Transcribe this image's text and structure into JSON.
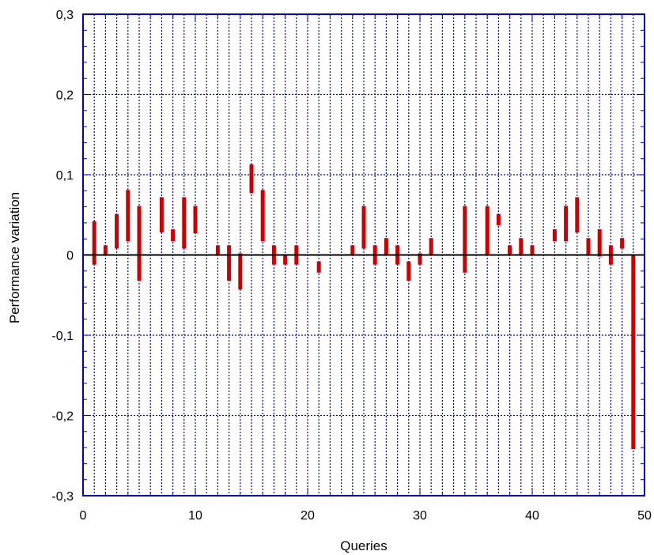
{
  "chart_data": {
    "type": "range_bar",
    "title": "",
    "xlabel": "Queries",
    "ylabel": "Performance variation",
    "xlim": [
      0,
      50
    ],
    "ylim": [
      -0.3,
      0.3
    ],
    "x_ticks": [
      "0",
      "10",
      "20",
      "30",
      "40",
      "50"
    ],
    "y_ticks": [
      "-0,3",
      "-0,2",
      "-0,1",
      "0",
      "0,1",
      "0,2",
      "0,3"
    ],
    "grid": true,
    "legend": "none",
    "colors": {
      "bar": "#cc0000",
      "grid": "#0000cc",
      "frame": "#0000cc",
      "zero_line": "#000000"
    },
    "series": [
      {
        "ranges": [
          {
            "x": 1,
            "low": -0.012,
            "high": 0.042
          },
          {
            "x": 2,
            "low": 0.0,
            "high": 0.012
          },
          {
            "x": 3,
            "low": 0.008,
            "high": 0.051
          },
          {
            "x": 4,
            "low": 0.017,
            "high": 0.081
          },
          {
            "x": 5,
            "low": -0.032,
            "high": 0.061
          },
          {
            "x": 7,
            "low": 0.028,
            "high": 0.072
          },
          {
            "x": 8,
            "low": 0.017,
            "high": 0.032
          },
          {
            "x": 9,
            "low": 0.008,
            "high": 0.072
          },
          {
            "x": 10,
            "low": 0.027,
            "high": 0.061
          },
          {
            "x": 12,
            "low": 0.0,
            "high": 0.012
          },
          {
            "x": 13,
            "low": -0.032,
            "high": 0.012
          },
          {
            "x": 14,
            "low": -0.043,
            "high": 0.002
          },
          {
            "x": 15,
            "low": 0.077,
            "high": 0.113
          },
          {
            "x": 16,
            "low": 0.017,
            "high": 0.081
          },
          {
            "x": 17,
            "low": -0.012,
            "high": 0.012
          },
          {
            "x": 18,
            "low": -0.012,
            "high": 0.0
          },
          {
            "x": 19,
            "low": -0.012,
            "high": 0.012
          },
          {
            "x": 21,
            "low": -0.022,
            "high": -0.008
          },
          {
            "x": 24,
            "low": 0.0,
            "high": 0.012
          },
          {
            "x": 25,
            "low": 0.008,
            "high": 0.061
          },
          {
            "x": 26,
            "low": -0.012,
            "high": 0.012
          },
          {
            "x": 27,
            "low": 0.0,
            "high": 0.021
          },
          {
            "x": 28,
            "low": -0.012,
            "high": 0.012
          },
          {
            "x": 29,
            "low": -0.032,
            "high": -0.008
          },
          {
            "x": 30,
            "low": -0.012,
            "high": 0.002
          },
          {
            "x": 31,
            "low": 0.0,
            "high": 0.021
          },
          {
            "x": 34,
            "low": -0.022,
            "high": 0.061
          },
          {
            "x": 36,
            "low": 0.0,
            "high": 0.061
          },
          {
            "x": 37,
            "low": 0.037,
            "high": 0.051
          },
          {
            "x": 38,
            "low": 0.0,
            "high": 0.012
          },
          {
            "x": 39,
            "low": 0.0,
            "high": 0.021
          },
          {
            "x": 40,
            "low": 0.0,
            "high": 0.012
          },
          {
            "x": 42,
            "low": 0.017,
            "high": 0.032
          },
          {
            "x": 43,
            "low": 0.017,
            "high": 0.061
          },
          {
            "x": 44,
            "low": 0.028,
            "high": 0.072
          },
          {
            "x": 45,
            "low": 0.0,
            "high": 0.021
          },
          {
            "x": 46,
            "low": -0.002,
            "high": 0.032
          },
          {
            "x": 47,
            "low": -0.012,
            "high": 0.012
          },
          {
            "x": 48,
            "low": 0.008,
            "high": 0.021
          },
          {
            "x": 49,
            "low": -0.242,
            "high": 0.0
          }
        ]
      }
    ]
  }
}
